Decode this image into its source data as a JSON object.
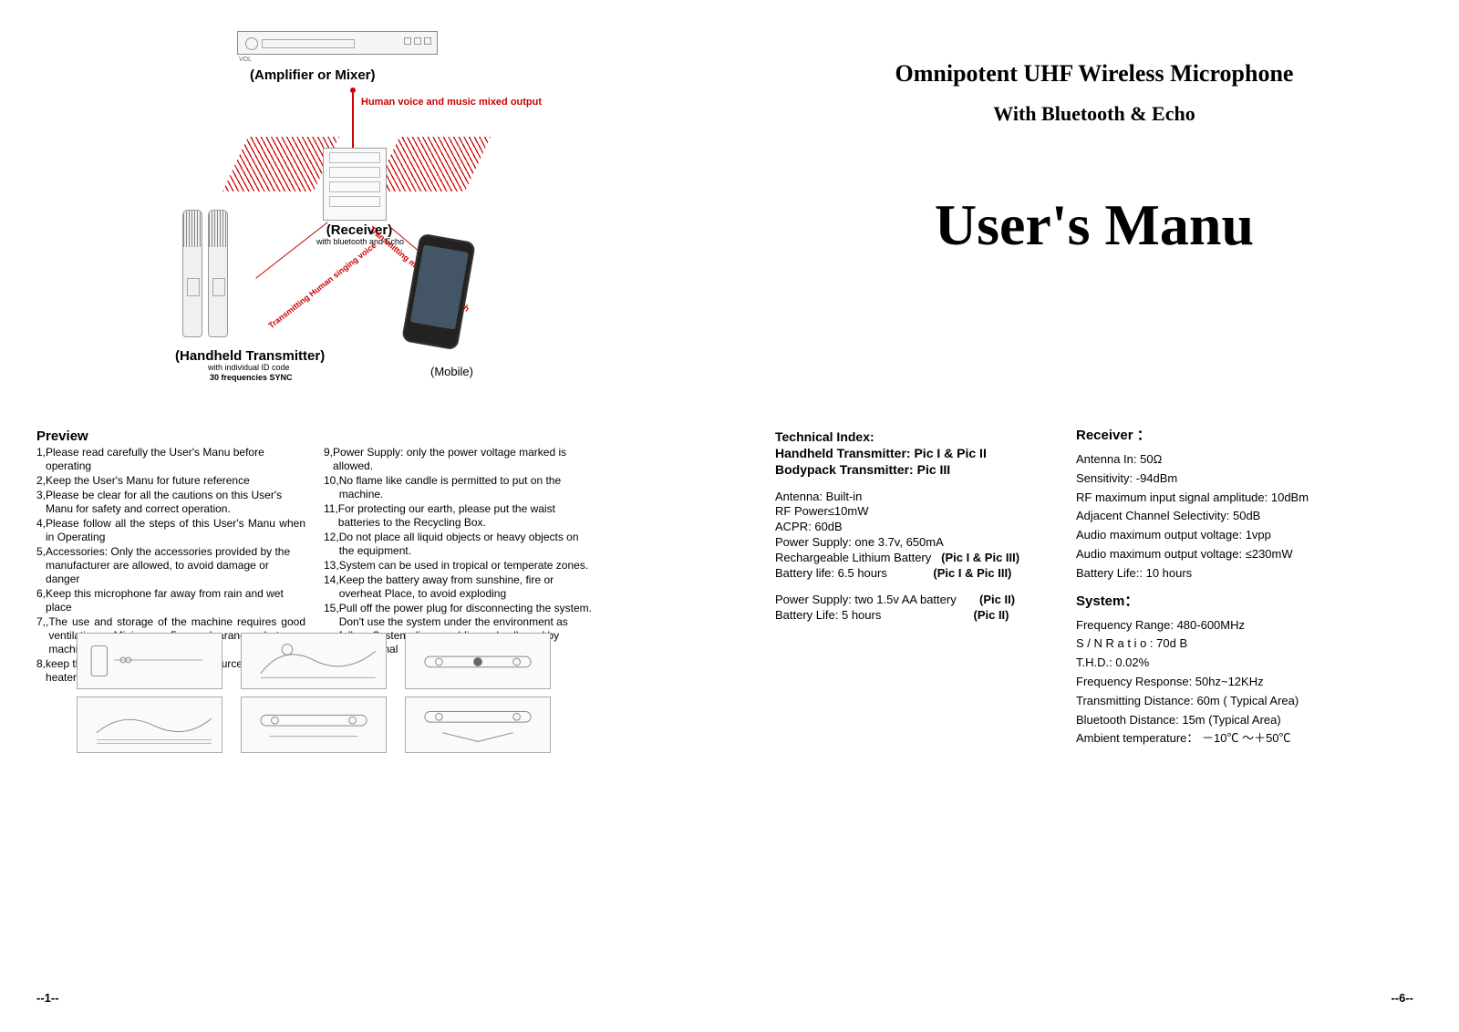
{
  "left": {
    "diagram": {
      "vol": "VOL",
      "amp_label": "(Amplifier or Mixer)",
      "output_text": "Human voice and  music mixed output",
      "receiver_label": "(Receiver)",
      "receiver_sub": "with bluetooth and Echo",
      "handheld_label": "(Handheld Transmitter)",
      "handheld_sub1": "with individual ID code",
      "handheld_sub2": "30 frequencies SYNC",
      "mobile_label": "(Mobile)",
      "diag_left": "Transmitting Human singing voice",
      "diag_right": "Transmitting music by Bluetooth"
    },
    "preview_title": "Preview",
    "col1": [
      {
        "n": "1, ",
        "t": "Please read carefully the User's Manu before operating"
      },
      {
        "n": "2, ",
        "t": "Keep the User's Manu for future reference"
      },
      {
        "n": "3, ",
        "t": "Please be clear for all the cautions on this User's Manu for safety and correct operation."
      },
      {
        "n": "4, ",
        "t": "Please follow all the steps of this User's Manu when in Operating",
        "j": true
      },
      {
        "n": "5, ",
        "t": "Accessories: Only the accessories provided by the manufacturer are allowed, to avoid damage or danger"
      },
      {
        "n": "6, ",
        "t": "Keep this microphone far away from rain and wet place"
      },
      {
        "n": "7,,",
        "t": "The use and storage of the machine requires good ventilation. Minimum 5cm clearance between machine is required",
        "j": true
      },
      {
        "n": "8, ",
        "t": "keep the system far way from hot sources, such as heater, radiator, stove."
      }
    ],
    "col2": [
      {
        "n": "9, ",
        "t": "Power Supply: only the power voltage marked is allowed."
      },
      {
        "n": "10, ",
        "t": "No flame like candle is permitted to put on the machine."
      },
      {
        "n": "11, ",
        "t": "For protecting our earth, please put the waist batteries to the Recycling Box."
      },
      {
        "n": "12, ",
        "t": "Do not place all liquid objects or heavy objects on the equipment."
      },
      {
        "n": "13, ",
        "t": "System can be used in tropical or temperate zones."
      },
      {
        "n": "14, ",
        "t": "Keep the battery away from sunshine, fire or overheat Place, to avoid exploding"
      },
      {
        "n": "15, ",
        "t": "Pull off the power plug for disconnecting the system. Don't use the system under the environment as follow, System disassembling only allowed by professional"
      }
    ],
    "page_num": "--1--"
  },
  "right": {
    "title1": "Omnipotent UHF Wireless Microphone",
    "title2": "With Bluetooth & Echo",
    "big": "User's Manu",
    "tech": {
      "h1": "Technical Index:",
      "h2": "Handheld Transmitter: Pic I & Pic II",
      "h3": "Bodypack Transmitter: Pic III",
      "l1": "Antenna: Built-in",
      "l2": "RF Power≤10mW",
      "l3": "ACPR: 60dB",
      "l4": "Power Supply: one 3.7v, 650mA",
      "l5a": "Rechargeable Lithium Battery",
      "l5b": "(Pic I & Pic III)",
      "l6a": "Battery life: 6.5 hours",
      "l6b": "(Pic I & Pic III)",
      "l7a": "Power Supply: two 1.5v AA battery",
      "l7b": "(Pic II)",
      "l8a": "Battery Life: 5 hours",
      "l8b": "(Pic II)"
    },
    "receiver": {
      "h": "Receiver ：",
      "l1": "Antenna In: 50Ω",
      "l2": "Sensitivity: -94dBm",
      "l3": "RF maximum input signal amplitude: 10dBm",
      "l4": "Adjacent Channel Selectivity: 50dB",
      "l5": "Audio maximum output voltage: 1vpp",
      "l6": "Audio maximum output voltage:  ≤230mW",
      "l7": "Battery Life:: 10 hours"
    },
    "system": {
      "h": "System：",
      "l1": "Frequency Range: 480-600MHz",
      "l2": "S / N R a t i o : 70d B",
      "l3": "T.H.D.: 0.02%",
      "l4": "Frequency Response: 50hz~12KHz",
      "l5": "Transmitting Distance: 60m ( Typical Area)",
      "l6": "Bluetooth Distance: 15m (Typical Area)",
      "l7": "Ambient temperature：  －10℃  ～＋50℃"
    },
    "page_num": "--6--"
  },
  "colors": {
    "accent": "#c00000",
    "text": "#000000",
    "bg": "#ffffff"
  }
}
